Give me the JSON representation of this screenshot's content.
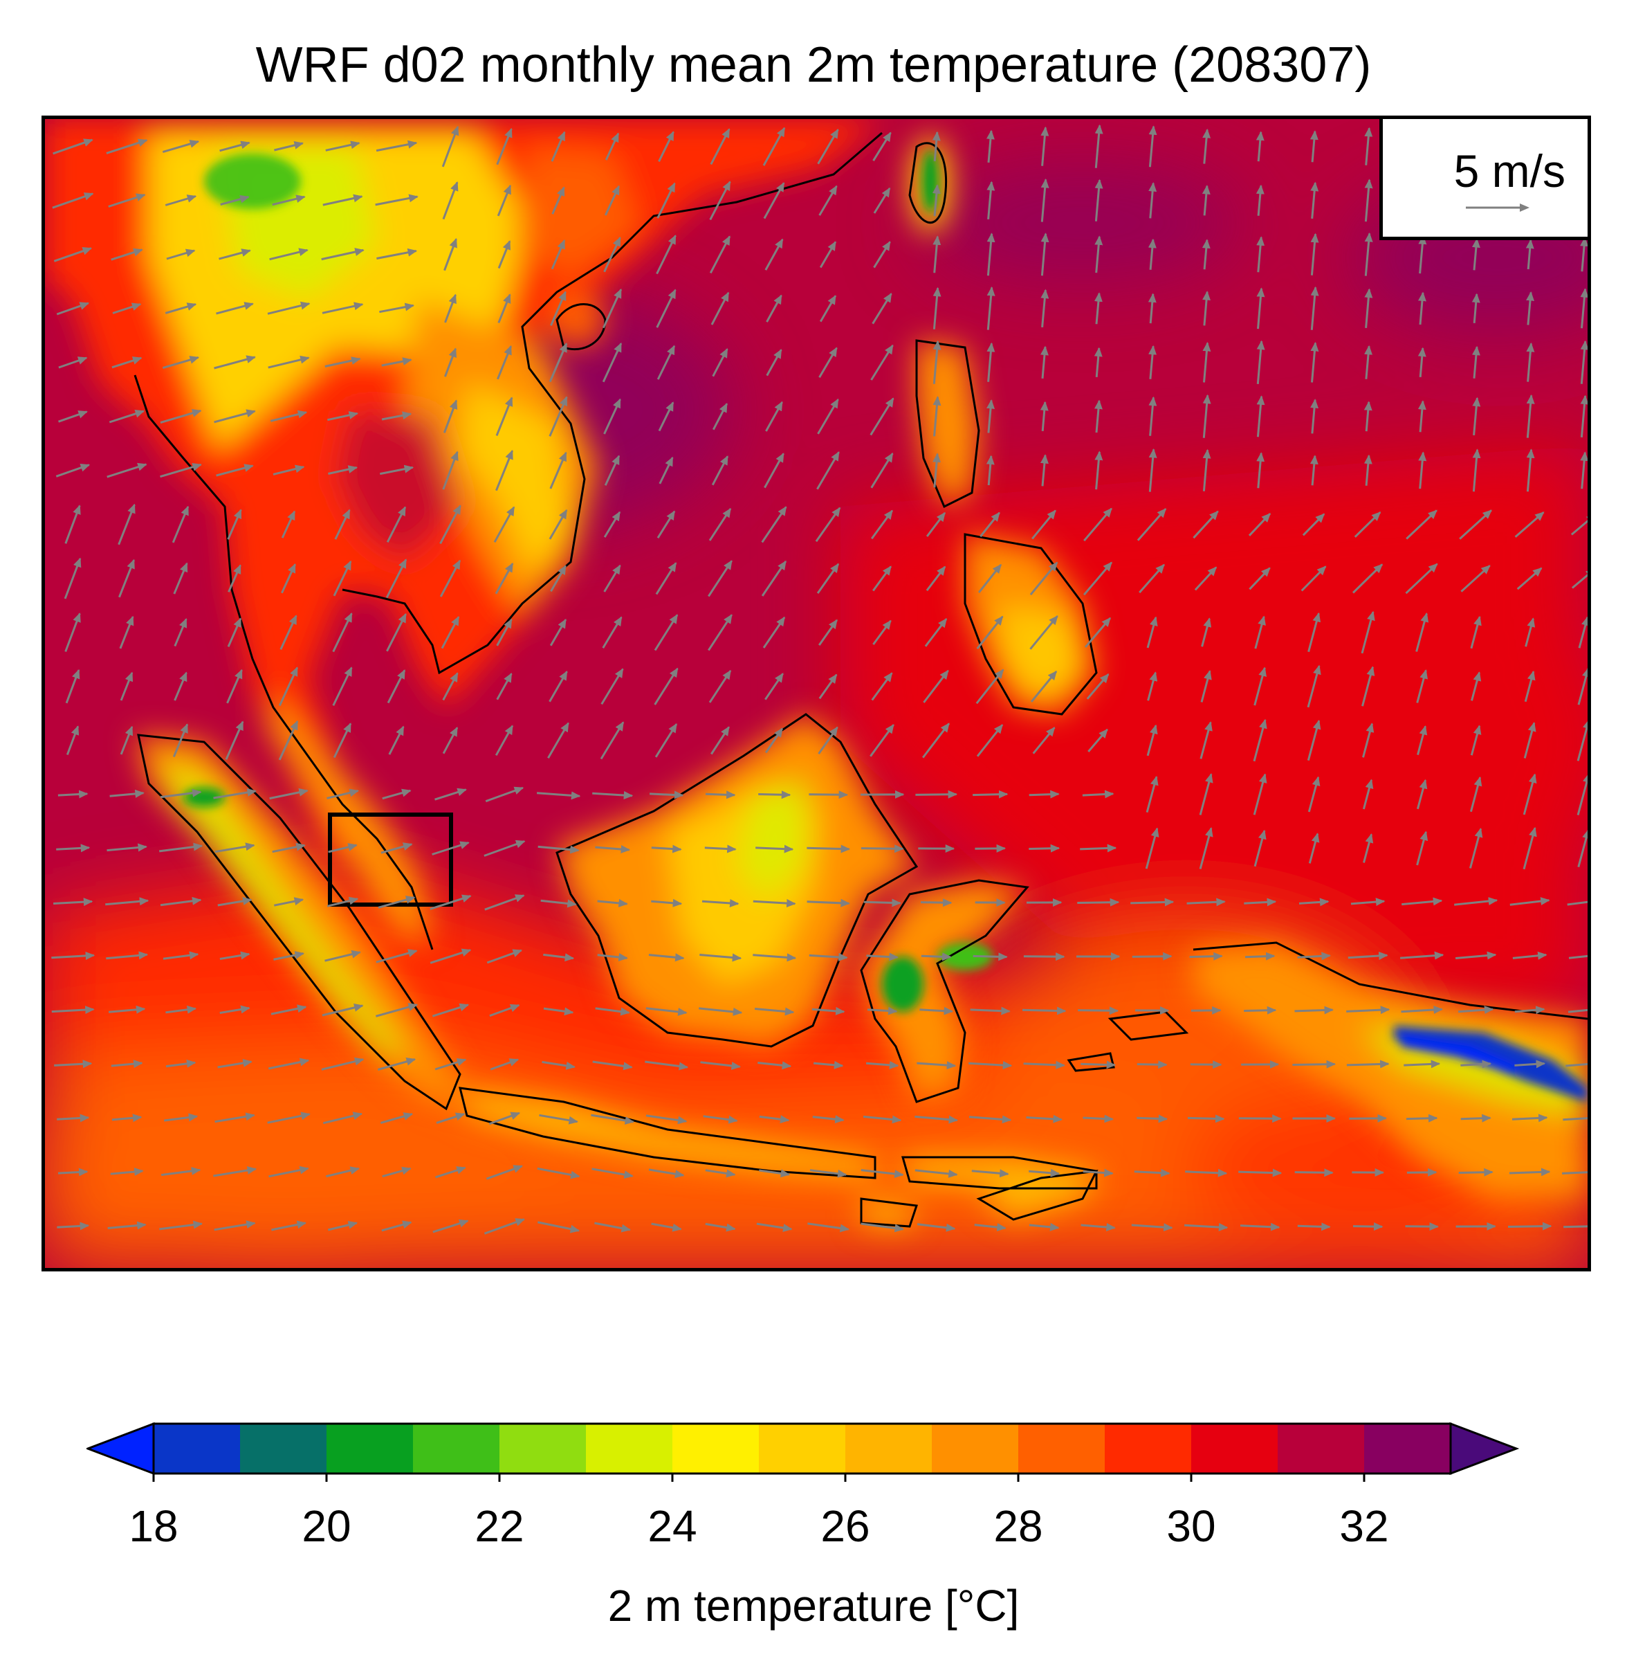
{
  "title": "WRF d02 monthly mean 2m temperature (208307)",
  "map": {
    "field": "2 m temperature",
    "study_box": true
  },
  "wind_reference": {
    "label": "5 m/s",
    "speed_ms": 5
  },
  "colorbar": {
    "label": "2 m temperature [°C]",
    "min": 18,
    "max": 33,
    "extend": "both",
    "tick_values": [
      18,
      20,
      22,
      24,
      26,
      28,
      30,
      32
    ],
    "tick_labels": [
      "18",
      "20",
      "22",
      "24",
      "26",
      "28",
      "30",
      "32"
    ],
    "under_color": "#0022ff",
    "over_color": "#4a0a7a",
    "colors": [
      "#0a36c8",
      "#067068",
      "#08a020",
      "#3fbf18",
      "#90dd10",
      "#d8f000",
      "#fff000",
      "#ffd000",
      "#ffb400",
      "#ff9000",
      "#ff6000",
      "#ff2a00",
      "#e60010",
      "#b8003a",
      "#880060"
    ]
  }
}
